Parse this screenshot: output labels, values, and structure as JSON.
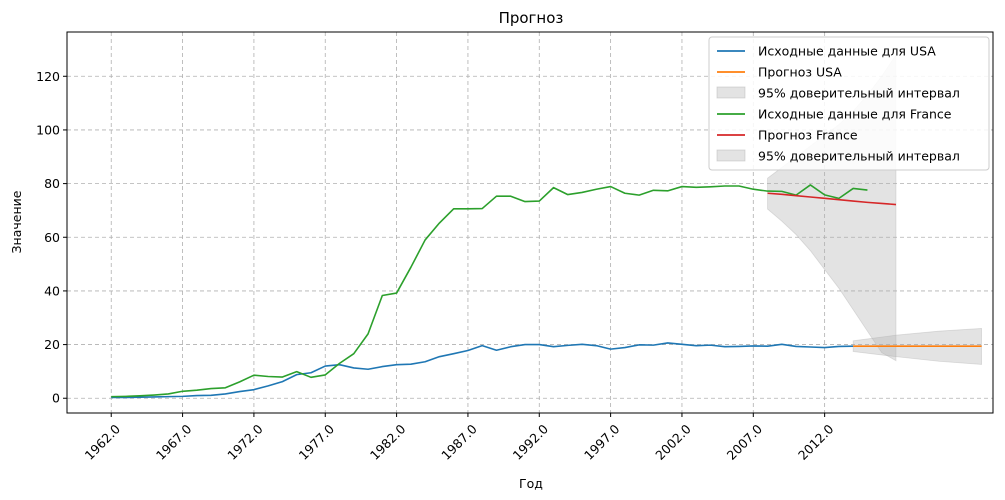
{
  "chart_data": {
    "type": "line",
    "title": "Прогноз",
    "xlabel": "Год",
    "ylabel": "Значение",
    "xlim": [
      1958.9,
      2023.8
    ],
    "ylim": [
      -5.5,
      136.5
    ],
    "x_ticks": [
      1962.0,
      1967.0,
      1972.0,
      1977.0,
      1982.0,
      1987.0,
      1992.0,
      1997.0,
      2002.0,
      2007.0,
      2012.0
    ],
    "x_tick_labels": [
      "1962.0",
      "1967.0",
      "1972.0",
      "1977.0",
      "1982.0",
      "1987.0",
      "1992.0",
      "1997.0",
      "2002.0",
      "2007.0",
      "2012.0"
    ],
    "y_ticks": [
      0,
      20,
      40,
      60,
      80,
      100,
      120
    ],
    "y_tick_labels": [
      "0",
      "20",
      "40",
      "60",
      "80",
      "100",
      "120"
    ],
    "grid": true,
    "legend_position": "top-right",
    "legend": [
      "Исходные данные для USA",
      "Прогноз USA",
      "95% доверительный интервал",
      "Исходные данные для France",
      "Прогноз France",
      "95% доверительный интервал"
    ],
    "series": [
      {
        "name": "Исходные данные для USA",
        "kind": "line",
        "color": "#1f77b4",
        "x": [
          1962,
          1963,
          1964,
          1965,
          1966,
          1967,
          1968,
          1969,
          1970,
          1971,
          1972,
          1973,
          1974,
          1975,
          1976,
          1977,
          1978,
          1979,
          1980,
          1981,
          1982,
          1983,
          1984,
          1985,
          1986,
          1987,
          1988,
          1989,
          1990,
          1991,
          1992,
          1993,
          1994,
          1995,
          1996,
          1997,
          1998,
          1999,
          2000,
          2001,
          2002,
          2003,
          2004,
          2005,
          2006,
          2007,
          2008,
          2009,
          2010,
          2011,
          2012,
          2013,
          2014
        ],
        "y": [
          0.3,
          0.3,
          0.4,
          0.5,
          0.6,
          0.7,
          1.0,
          1.1,
          1.6,
          2.5,
          3.2,
          4.6,
          6.2,
          8.8,
          9.5,
          12.0,
          12.5,
          11.3,
          10.8,
          11.8,
          12.5,
          12.7,
          13.6,
          15.5,
          16.6,
          17.8,
          19.6,
          17.9,
          19.2,
          20.0,
          20.0,
          19.2,
          19.7,
          20.1,
          19.6,
          18.3,
          18.9,
          19.9,
          19.8,
          20.6,
          20.1,
          19.6,
          19.8,
          19.2,
          19.3,
          19.5,
          19.4,
          20.1,
          19.3,
          19.1,
          18.9,
          19.3,
          19.4
        ]
      },
      {
        "name": "Прогноз USA",
        "kind": "line",
        "color": "#ff7f0e",
        "x": [
          2014,
          2015,
          2016,
          2017,
          2018,
          2019,
          2020,
          2021,
          2022,
          2023
        ],
        "y": [
          19.4,
          19.4,
          19.4,
          19.4,
          19.4,
          19.4,
          19.4,
          19.4,
          19.4,
          19.4
        ]
      },
      {
        "name": "95% доверительный интервал",
        "kind": "band",
        "color": "#b0b0b0",
        "x": [
          2014,
          2017,
          2020,
          2023
        ],
        "lower": [
          17.4,
          15.5,
          13.8,
          12.6
        ],
        "upper": [
          21.4,
          23.5,
          25.0,
          26.0
        ]
      },
      {
        "name": "Исходные данные для France",
        "kind": "line",
        "color": "#2ca02c",
        "x": [
          1962,
          1963,
          1964,
          1965,
          1966,
          1967,
          1968,
          1969,
          1970,
          1971,
          1972,
          1973,
          1974,
          1975,
          1976,
          1977,
          1978,
          1979,
          1980,
          1981,
          1982,
          1983,
          1984,
          1985,
          1986,
          1987,
          1988,
          1989,
          1990,
          1991,
          1992,
          1993,
          1994,
          1995,
          1996,
          1997,
          1998,
          1999,
          2000,
          2001,
          2002,
          2003,
          2004,
          2005,
          2006,
          2007,
          2008,
          2009,
          2010,
          2011,
          2012,
          2013,
          2014,
          2015
        ],
        "y": [
          0.6,
          0.7,
          0.9,
          1.2,
          1.6,
          2.6,
          3.0,
          3.6,
          3.9,
          6.1,
          8.6,
          8.1,
          7.9,
          9.9,
          7.8,
          8.7,
          13.0,
          16.6,
          24.0,
          38.3,
          39.2,
          48.8,
          59.0,
          65.3,
          70.6,
          70.6,
          70.7,
          75.3,
          75.3,
          73.3,
          73.5,
          78.5,
          75.9,
          76.7,
          77.9,
          78.9,
          76.4,
          75.7,
          77.5,
          77.3,
          78.9,
          78.6,
          78.8,
          79.1,
          79.1,
          77.9,
          77.2,
          77.1,
          75.7,
          79.5,
          75.8,
          74.5,
          78.2,
          77.6
        ]
      },
      {
        "name": "Прогноз France",
        "kind": "line",
        "color": "#d62728",
        "x": [
          2008,
          2009,
          2010,
          2011,
          2012,
          2013,
          2014,
          2015,
          2016,
          2017
        ],
        "y": [
          76.4,
          76.0,
          75.5,
          75.0,
          74.5,
          74.0,
          73.5,
          73.0,
          72.6,
          72.2
        ]
      },
      {
        "name": "95% доверительный интервал",
        "kind": "band",
        "color": "#b0b0b0",
        "x": [
          2008,
          2009,
          2010,
          2011,
          2012,
          2013,
          2014,
          2015,
          2016,
          2017
        ],
        "lower": [
          70.5,
          66.0,
          61.0,
          55.0,
          48.0,
          41.0,
          33.0,
          25.0,
          17.0,
          14.0
        ],
        "upper": [
          82.0,
          86.0,
          90.0,
          94.0,
          98.0,
          102.0,
          107.0,
          113.0,
          120.0,
          128.0
        ]
      }
    ]
  }
}
